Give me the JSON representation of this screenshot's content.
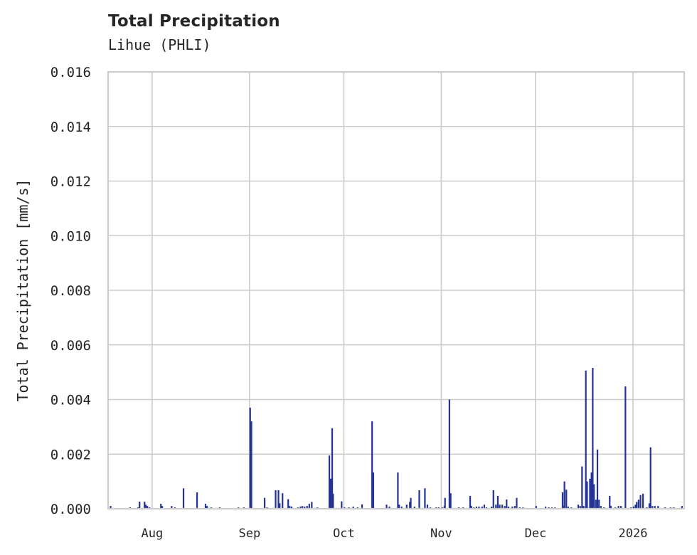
{
  "header": {
    "title": "Total Precipitation",
    "subtitle": "Lihue (PHLI)"
  },
  "colors": {
    "bar": "#253494",
    "grid": "#cccccc",
    "axis": "#cccccc",
    "text": "#262626",
    "background": "#ffffff"
  },
  "chart_data": {
    "type": "bar",
    "title": "Total Precipitation",
    "subtitle": "Lihue (PHLI)",
    "xlabel": "",
    "ylabel": "Total Precipitation [mm/s]",
    "ylim": [
      0,
      0.016
    ],
    "yticks": [
      "0.000",
      "0.002",
      "0.004",
      "0.006",
      "0.008",
      "0.010",
      "0.012",
      "0.014",
      "0.016"
    ],
    "xticks": [
      {
        "label": "Aug",
        "day": 14
      },
      {
        "label": "Sep",
        "day": 45
      },
      {
        "label": "Oct",
        "day": 75
      },
      {
        "label": "Nov",
        "day": 106
      },
      {
        "label": "Dec",
        "day": 136
      },
      {
        "label": "2026",
        "day": 167
      }
    ],
    "x_range_days": [
      0,
      183.3
    ],
    "x_start_date": "Jul 18",
    "grid": true,
    "legend": null,
    "series": [
      {
        "name": "Total Precipitation",
        "points": [
          {
            "day": 0.8,
            "value": 0.0001
          },
          {
            "day": 7.0,
            "value": 5e-05
          },
          {
            "day": 9.5,
            "value": 5e-05
          },
          {
            "day": 10.0,
            "value": 0.00026
          },
          {
            "day": 11.6,
            "value": 0.00026
          },
          {
            "day": 12.0,
            "value": 0.00015
          },
          {
            "day": 12.5,
            "value": 0.0001
          },
          {
            "day": 13.2,
            "value": 5e-05
          },
          {
            "day": 16.8,
            "value": 0.00018
          },
          {
            "day": 17.2,
            "value": 0.0001
          },
          {
            "day": 20.2,
            "value": 0.0001
          },
          {
            "day": 21.3,
            "value": 5e-05
          },
          {
            "day": 24.0,
            "value": 0.00075
          },
          {
            "day": 28.3,
            "value": 0.0006
          },
          {
            "day": 31.0,
            "value": 0.00018
          },
          {
            "day": 31.5,
            "value": 0.0001
          },
          {
            "day": 32.8,
            "value": 5e-05
          },
          {
            "day": 35.5,
            "value": 5e-05
          },
          {
            "day": 41.5,
            "value": 5e-05
          },
          {
            "day": 43.2,
            "value": 5e-05
          },
          {
            "day": 45.2,
            "value": 0.0037
          },
          {
            "day": 45.6,
            "value": 0.0032
          },
          {
            "day": 49.8,
            "value": 0.0004
          },
          {
            "day": 50.6,
            "value": 5e-05
          },
          {
            "day": 53.3,
            "value": 0.00068
          },
          {
            "day": 54.2,
            "value": 0.00068
          },
          {
            "day": 54.6,
            "value": 0.0002
          },
          {
            "day": 55.5,
            "value": 0.00057
          },
          {
            "day": 57.3,
            "value": 0.00035
          },
          {
            "day": 57.8,
            "value": 0.0001
          },
          {
            "day": 58.4,
            "value": 8e-05
          },
          {
            "day": 60.4,
            "value": 5e-05
          },
          {
            "day": 61.2,
            "value": 8e-05
          },
          {
            "day": 61.8,
            "value": 0.0001
          },
          {
            "day": 62.5,
            "value": 8e-05
          },
          {
            "day": 63.3,
            "value": 0.0001
          },
          {
            "day": 64.0,
            "value": 0.00018
          },
          {
            "day": 64.8,
            "value": 0.00025
          },
          {
            "day": 66.6,
            "value": 5e-05
          },
          {
            "day": 70.4,
            "value": 0.00195
          },
          {
            "day": 70.8,
            "value": 0.0011
          },
          {
            "day": 71.3,
            "value": 0.00295
          },
          {
            "day": 71.6,
            "value": 0.00055
          },
          {
            "day": 74.3,
            "value": 0.00027
          },
          {
            "day": 75.2,
            "value": 5e-05
          },
          {
            "day": 76.6,
            "value": 5e-05
          },
          {
            "day": 78.0,
            "value": 8e-05
          },
          {
            "day": 79.4,
            "value": 5e-05
          },
          {
            "day": 80.8,
            "value": 0.00016
          },
          {
            "day": 84.0,
            "value": 0.0032
          },
          {
            "day": 84.4,
            "value": 0.00133
          },
          {
            "day": 88.6,
            "value": 0.00015
          },
          {
            "day": 89.5,
            "value": 8e-05
          },
          {
            "day": 92.2,
            "value": 0.00133
          },
          {
            "day": 92.6,
            "value": 0.00015
          },
          {
            "day": 93.4,
            "value": 8e-05
          },
          {
            "day": 95.0,
            "value": 0.00015
          },
          {
            "day": 96.0,
            "value": 0.00025
          },
          {
            "day": 96.3,
            "value": 0.0004
          },
          {
            "day": 97.5,
            "value": 8e-05
          },
          {
            "day": 99.0,
            "value": 0.00068
          },
          {
            "day": 100.8,
            "value": 0.00075
          },
          {
            "day": 101.6,
            "value": 0.00015
          },
          {
            "day": 102.5,
            "value": 5e-05
          },
          {
            "day": 104.4,
            "value": 5e-05
          },
          {
            "day": 105.2,
            "value": 5e-05
          },
          {
            "day": 106.3,
            "value": 5e-05
          },
          {
            "day": 107.0,
            "value": 0.0001
          },
          {
            "day": 107.2,
            "value": 0.0004
          },
          {
            "day": 108.6,
            "value": 0.004
          },
          {
            "day": 109.0,
            "value": 0.00057
          },
          {
            "day": 111.6,
            "value": 5e-05
          },
          {
            "day": 113.0,
            "value": 5e-05
          },
          {
            "day": 115.2,
            "value": 0.00047
          },
          {
            "day": 115.6,
            "value": 0.0001
          },
          {
            "day": 116.4,
            "value": 5e-05
          },
          {
            "day": 117.2,
            "value": 8e-05
          },
          {
            "day": 118.0,
            "value": 8e-05
          },
          {
            "day": 119.0,
            "value": 8e-05
          },
          {
            "day": 119.7,
            "value": 0.00015
          },
          {
            "day": 120.4,
            "value": 5e-05
          },
          {
            "day": 122.0,
            "value": 8e-05
          },
          {
            "day": 122.6,
            "value": 0.00068
          },
          {
            "day": 123.4,
            "value": 0.00015
          },
          {
            "day": 124.0,
            "value": 0.00047
          },
          {
            "day": 124.6,
            "value": 0.00015
          },
          {
            "day": 125.4,
            "value": 0.00015
          },
          {
            "day": 126.2,
            "value": 0.0001
          },
          {
            "day": 126.8,
            "value": 0.00034
          },
          {
            "day": 127.4,
            "value": 8e-05
          },
          {
            "day": 128.6,
            "value": 8e-05
          },
          {
            "day": 129.4,
            "value": 0.0001
          },
          {
            "day": 130.0,
            "value": 0.0004
          },
          {
            "day": 131.0,
            "value": 5e-05
          },
          {
            "day": 132.0,
            "value": 5e-05
          },
          {
            "day": 136.2,
            "value": 0.0001
          },
          {
            "day": 139.2,
            "value": 8e-05
          },
          {
            "day": 140.2,
            "value": 5e-05
          },
          {
            "day": 141.2,
            "value": 5e-05
          },
          {
            "day": 142.2,
            "value": 5e-05
          },
          {
            "day": 144.6,
            "value": 0.0006
          },
          {
            "day": 144.8,
            "value": 0.0001
          },
          {
            "day": 145.2,
            "value": 0.001
          },
          {
            "day": 145.8,
            "value": 0.0007
          },
          {
            "day": 146.4,
            "value": 8e-05
          },
          {
            "day": 147.4,
            "value": 5e-05
          },
          {
            "day": 149.6,
            "value": 0.00015
          },
          {
            "day": 150.2,
            "value": 0.0001
          },
          {
            "day": 150.8,
            "value": 0.00155
          },
          {
            "day": 151.3,
            "value": 0.0001
          },
          {
            "day": 152.0,
            "value": 0.00506
          },
          {
            "day": 152.4,
            "value": 0.001
          },
          {
            "day": 153.3,
            "value": 0.0011
          },
          {
            "day": 153.8,
            "value": 0.00133
          },
          {
            "day": 154.2,
            "value": 0.00516
          },
          {
            "day": 154.6,
            "value": 0.0009
          },
          {
            "day": 155.2,
            "value": 0.00033
          },
          {
            "day": 155.7,
            "value": 0.00217
          },
          {
            "day": 156.2,
            "value": 0.00033
          },
          {
            "day": 156.8,
            "value": 0.0001
          },
          {
            "day": 157.8,
            "value": 5e-05
          },
          {
            "day": 159.6,
            "value": 0.00047
          },
          {
            "day": 160.0,
            "value": 0.0001
          },
          {
            "day": 161.4,
            "value": 5e-05
          },
          {
            "day": 162.4,
            "value": 0.0001
          },
          {
            "day": 163.2,
            "value": 0.0001
          },
          {
            "day": 164.6,
            "value": 0.00448
          },
          {
            "day": 166.4,
            "value": 5e-05
          },
          {
            "day": 167.2,
            "value": 8e-05
          },
          {
            "day": 167.8,
            "value": 0.00015
          },
          {
            "day": 168.2,
            "value": 0.00025
          },
          {
            "day": 168.8,
            "value": 0.00033
          },
          {
            "day": 169.4,
            "value": 0.0005
          },
          {
            "day": 170.2,
            "value": 0.00055
          },
          {
            "day": 171.4,
            "value": 5e-05
          },
          {
            "day": 172.2,
            "value": 0.0002
          },
          {
            "day": 172.6,
            "value": 0.00225
          },
          {
            "day": 173.2,
            "value": 0.0001
          },
          {
            "day": 174.0,
            "value": 0.0001
          },
          {
            "day": 175.0,
            "value": 0.0001
          },
          {
            "day": 177.2,
            "value": 5e-05
          },
          {
            "day": 179.0,
            "value": 5e-05
          },
          {
            "day": 180.0,
            "value": 5e-05
          },
          {
            "day": 182.6,
            "value": 0.0001
          }
        ]
      }
    ]
  }
}
